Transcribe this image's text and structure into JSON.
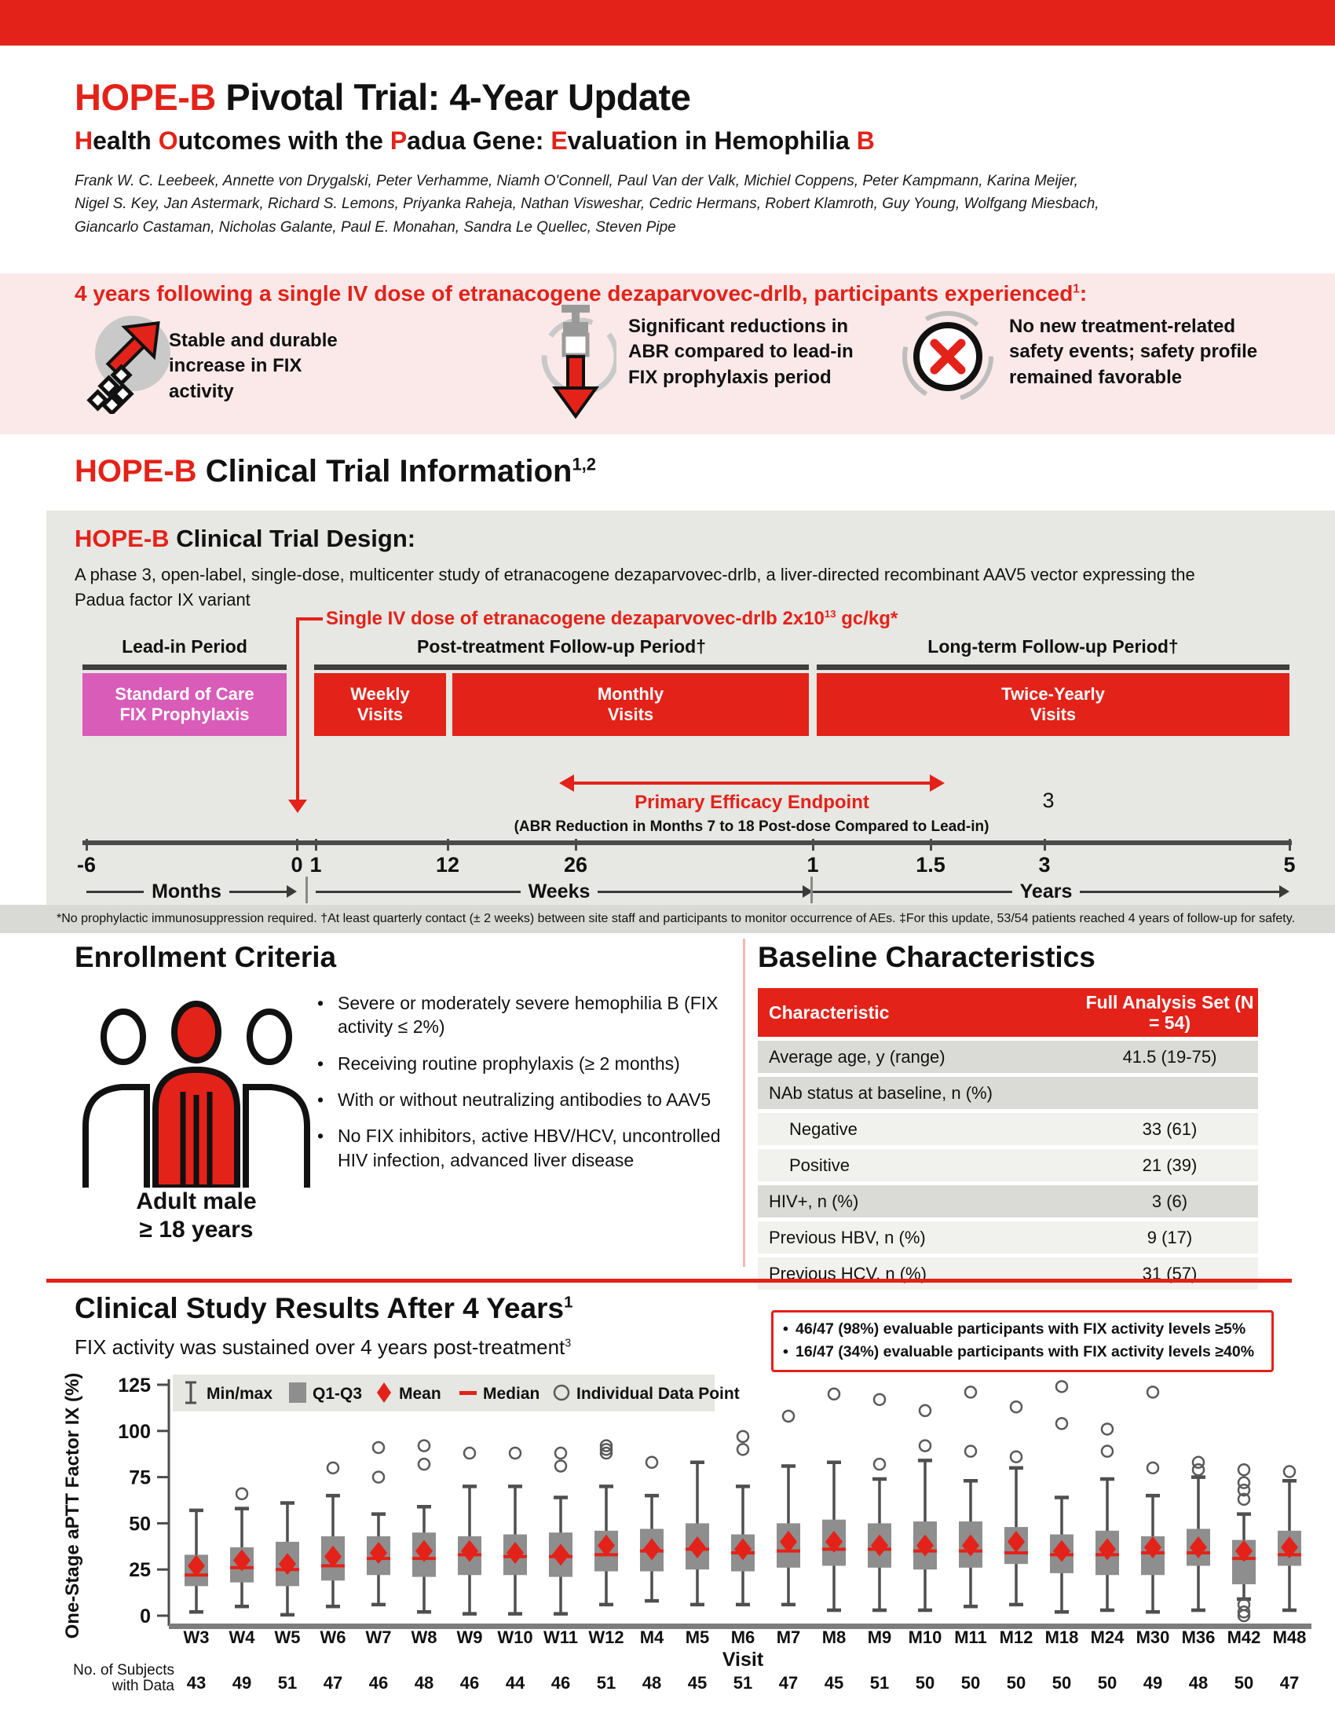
{
  "colors": {
    "accent_red": "#e32219",
    "banner_pink": "#fbe9e9",
    "design_gray": "#e7e7e3",
    "magenta_box": "#d95cb8",
    "chart_box_gray": "#8e8e8e",
    "table_row_dark": "#dadad6",
    "table_row_light": "#f1f1ed"
  },
  "title": {
    "brand": "HOPE-B",
    "rest": " Pivotal Trial: 4-Year Update"
  },
  "subtitle": {
    "words": [
      {
        "r": "H",
        "t": "ealth"
      },
      {
        "r": "O",
        "t": "utcomes"
      },
      {
        "t": "with"
      },
      {
        "t": "the"
      },
      {
        "r": "P",
        "t": "adua"
      },
      {
        "t": "Gene:"
      },
      {
        "r": "E",
        "t": "valuation"
      },
      {
        "t": "in"
      },
      {
        "t": "Hemophilia"
      },
      {
        "r": "B",
        "t": ""
      }
    ]
  },
  "authors_lines": [
    "Frank W. C. Leebeek, Annette von Drygalski, Peter Verhamme, Niamh O'Connell, Paul Van der Valk, Michiel Coppens, Peter Kampmann, Karina Meijer,",
    "Nigel S. Key, Jan Astermark, Richard S. Lemons, Priyanka Raheja, Nathan Visweshar, Cedric Hermans, Robert Klamroth, Guy Young, Wolfgang Miesbach,",
    "Giancarlo Castaman, Nicholas Galante, Paul E. Monahan, Sandra Le Quellec, Steven Pipe"
  ],
  "banner": {
    "headline": "4 years following a single IV dose of etranacogene dezaparvovec-drlb, participants experienced",
    "headline_sup": "1",
    "headline_suffix": ":",
    "items": [
      {
        "icon": "arrow-up-icon",
        "text": "Stable and durable increase in FIX activity"
      },
      {
        "icon": "syringe-down-icon",
        "text": "Significant reductions in ABR compared to lead-in FIX prophylaxis period"
      },
      {
        "icon": "no-new-safety-events-icon",
        "text": "No new treatment-related safety events; safety profile remained favorable"
      }
    ]
  },
  "info_heading": {
    "brand": "HOPE-B",
    "rest": " Clinical Trial Information",
    "sup": "1,2"
  },
  "design": {
    "heading_brand": "HOPE-B",
    "heading_rest": " Clinical Trial Design:",
    "description": "A phase 3, open-label, single-dose, multicenter study of etranacogene dezaparvovec-drlb, a liver-directed recombinant AAV5 vector expressing the Padua factor IX variant",
    "dose": {
      "pre": "Single IV dose of etranacogene dezaparvovec-drlb 2x10",
      "sup": "13",
      "post": " gc/kg*"
    },
    "periods": [
      {
        "label": "Lead-in Period"
      },
      {
        "label": "Post-treatment Follow-up Period†"
      },
      {
        "label": "Long-term Follow-up Period†"
      }
    ],
    "boxes": [
      {
        "line1": "Standard of Care",
        "line2": "FIX Prophylaxis"
      },
      {
        "line1": "Weekly",
        "line2": "Visits"
      },
      {
        "line1": "Monthly",
        "line2": "Visits"
      },
      {
        "line1": "Twice-Yearly",
        "line2": "Visits"
      }
    ],
    "endpoint": {
      "label": "Primary Efficacy Endpoint",
      "sublabel": "(ABR Reduction in Months 7 to 18 Post-dose Compared to Lead-in)",
      "marker": "3"
    },
    "axis": {
      "ticks": [
        "-6",
        "0",
        "1",
        "12",
        "26",
        "1",
        "1.5",
        "3",
        "5"
      ],
      "segments": [
        "Months",
        "Weeks",
        "Years"
      ]
    },
    "footnote": "*No prophylactic immunosuppression required. †At least quarterly contact (± 2 weeks) between site staff and participants to monitor occurrence of AEs. ‡For this update, 53/54 patients reached 4 years of follow-up for safety."
  },
  "enrollment": {
    "heading": "Enrollment Criteria",
    "caption_line1": "Adult male",
    "caption_line2": "≥ 18 years",
    "bullets": [
      "Severe or moderately severe hemophilia B (FIX activity ≤ 2%)",
      "Receiving routine prophylaxis (≥ 2 months)",
      "With or without neutralizing antibodies to AAV5",
      "No FIX inhibitors, active HBV/HCV, uncontrolled HIV infection, advanced liver disease"
    ]
  },
  "baseline": {
    "heading": "Baseline Characteristics",
    "col1": "Characteristic",
    "col2": "Full Analysis Set (N = 54)",
    "rows": [
      {
        "label": "Average age, y (range)",
        "value": "41.5 (19-75)",
        "shade": "dark",
        "indent": false
      },
      {
        "label": "NAb status at baseline, n (%)",
        "value": "",
        "shade": "dark",
        "indent": false
      },
      {
        "label": "Negative",
        "value": "33 (61)",
        "shade": "light",
        "indent": true
      },
      {
        "label": "Positive",
        "value": "21 (39)",
        "shade": "light",
        "indent": true
      },
      {
        "label": "HIV+, n (%)",
        "value": "3 (6)",
        "shade": "dark",
        "indent": false
      },
      {
        "label": "Previous HBV, n (%)",
        "value": "9 (17)",
        "shade": "light",
        "indent": false
      },
      {
        "label": "Previous HCV, n (%)",
        "value": "31 (57)",
        "shade": "light",
        "indent": false
      }
    ]
  },
  "results": {
    "title": "Clinical Study Results After 4 Years",
    "title_sup": "1",
    "subtitle": "FIX activity was sustained over 4 years post-treatment",
    "subtitle_sup": "3",
    "highlights": [
      "46/47 (98%) evaluable participants with FIX activity levels ≥5%",
      "16/47 (34%) evaluable participants with FIX activity levels ≥40%"
    ]
  },
  "chart_data": {
    "type": "box",
    "ylabel": "One-Stage aPTT Factor IX (%)",
    "xlabel": "Visit",
    "ylim": [
      0,
      125
    ],
    "yticks": [
      0,
      25,
      50,
      75,
      100,
      125
    ],
    "grid": false,
    "legend_position": "top-left",
    "legend": [
      {
        "icon": "minmax",
        "label": "Min/max"
      },
      {
        "icon": "box",
        "label": "Q1-Q3"
      },
      {
        "icon": "mean",
        "label": "Mean"
      },
      {
        "icon": "median",
        "label": "Median"
      },
      {
        "icon": "point",
        "label": "Individual Data Point"
      }
    ],
    "n_row_label_line1": "No. of Subjects",
    "n_row_label_line2": "with Data",
    "visits": [
      {
        "label": "W3",
        "n": 43,
        "min": 2,
        "q1": 16,
        "median": 22,
        "mean": 27,
        "q3": 33,
        "max": 57,
        "outliers": []
      },
      {
        "label": "W4",
        "n": 49,
        "min": 5,
        "q1": 18,
        "median": 26,
        "mean": 30,
        "q3": 37,
        "max": 58,
        "outliers": [
          66
        ]
      },
      {
        "label": "W5",
        "n": 51,
        "min": 0.5,
        "q1": 16,
        "median": 25,
        "mean": 28,
        "q3": 40,
        "max": 61,
        "outliers": []
      },
      {
        "label": "W6",
        "n": 47,
        "min": 5,
        "q1": 19,
        "median": 27,
        "mean": 32,
        "q3": 43,
        "max": 65,
        "outliers": [
          80
        ]
      },
      {
        "label": "W7",
        "n": 46,
        "min": 6,
        "q1": 22,
        "median": 31,
        "mean": 34,
        "q3": 43,
        "max": 55,
        "outliers": [
          75,
          91
        ]
      },
      {
        "label": "W8",
        "n": 48,
        "min": 2,
        "q1": 21,
        "median": 31,
        "mean": 35,
        "q3": 45,
        "max": 59,
        "outliers": [
          82,
          92
        ]
      },
      {
        "label": "W9",
        "n": 46,
        "min": 1,
        "q1": 22,
        "median": 33,
        "mean": 35,
        "q3": 43,
        "max": 70,
        "outliers": [
          88
        ]
      },
      {
        "label": "W10",
        "n": 44,
        "min": 1,
        "q1": 22,
        "median": 32,
        "mean": 34,
        "q3": 44,
        "max": 70,
        "outliers": [
          88
        ]
      },
      {
        "label": "W11",
        "n": 46,
        "min": 1,
        "q1": 21,
        "median": 32,
        "mean": 33,
        "q3": 45,
        "max": 64,
        "outliers": [
          81,
          88
        ]
      },
      {
        "label": "W12",
        "n": 51,
        "min": 6,
        "q1": 24,
        "median": 33,
        "mean": 38,
        "q3": 46,
        "max": 70,
        "outliers": [
          88,
          90,
          92
        ]
      },
      {
        "label": "M4",
        "n": 48,
        "min": 8,
        "q1": 24,
        "median": 35,
        "mean": 36,
        "q3": 47,
        "max": 65,
        "outliers": [
          83
        ]
      },
      {
        "label": "M5",
        "n": 45,
        "min": 6,
        "q1": 25,
        "median": 36,
        "mean": 37,
        "q3": 50,
        "max": 83,
        "outliers": []
      },
      {
        "label": "M6",
        "n": 51,
        "min": 6,
        "q1": 24,
        "median": 34,
        "mean": 36,
        "q3": 44,
        "max": 70,
        "outliers": [
          90,
          97
        ]
      },
      {
        "label": "M7",
        "n": 47,
        "min": 6,
        "q1": 26,
        "median": 35,
        "mean": 40,
        "q3": 50,
        "max": 81,
        "outliers": [
          108
        ]
      },
      {
        "label": "M8",
        "n": 45,
        "min": 3,
        "q1": 27,
        "median": 36,
        "mean": 40,
        "q3": 52,
        "max": 83,
        "outliers": [
          120
        ]
      },
      {
        "label": "M9",
        "n": 51,
        "min": 3,
        "q1": 26,
        "median": 36,
        "mean": 38,
        "q3": 50,
        "max": 74,
        "outliers": [
          82,
          117
        ]
      },
      {
        "label": "M10",
        "n": 50,
        "min": 3,
        "q1": 25,
        "median": 35,
        "mean": 38,
        "q3": 51,
        "max": 84,
        "outliers": [
          92,
          111
        ]
      },
      {
        "label": "M11",
        "n": 50,
        "min": 5,
        "q1": 26,
        "median": 35,
        "mean": 38,
        "q3": 51,
        "max": 73,
        "outliers": [
          89,
          121
        ]
      },
      {
        "label": "M12",
        "n": 50,
        "min": 6,
        "q1": 28,
        "median": 34,
        "mean": 40,
        "q3": 48,
        "max": 80,
        "outliers": [
          86,
          113
        ]
      },
      {
        "label": "M18",
        "n": 50,
        "min": 2,
        "q1": 23,
        "median": 33,
        "mean": 35,
        "q3": 44,
        "max": 64,
        "outliers": [
          104,
          124
        ]
      },
      {
        "label": "M24",
        "n": 50,
        "min": 3,
        "q1": 22,
        "median": 33,
        "mean": 36,
        "q3": 46,
        "max": 74,
        "outliers": [
          89,
          101
        ]
      },
      {
        "label": "M30",
        "n": 49,
        "min": 2,
        "q1": 22,
        "median": 34,
        "mean": 37,
        "q3": 43,
        "max": 65,
        "outliers": [
          80,
          121
        ]
      },
      {
        "label": "M36",
        "n": 48,
        "min": 3,
        "q1": 27,
        "median": 34,
        "mean": 37,
        "q3": 47,
        "max": 75,
        "outliers": [
          79,
          83
        ]
      },
      {
        "label": "M42",
        "n": 50,
        "min": 9,
        "q1": 17,
        "median": 31,
        "mean": 35,
        "q3": 41,
        "max": 55,
        "outliers": [
          63,
          68,
          72,
          79,
          6,
          2,
          0
        ]
      },
      {
        "label": "M48",
        "n": 47,
        "min": 3,
        "q1": 27,
        "median": 33,
        "mean": 37,
        "q3": 46,
        "max": 73,
        "outliers": [
          78
        ]
      }
    ]
  }
}
